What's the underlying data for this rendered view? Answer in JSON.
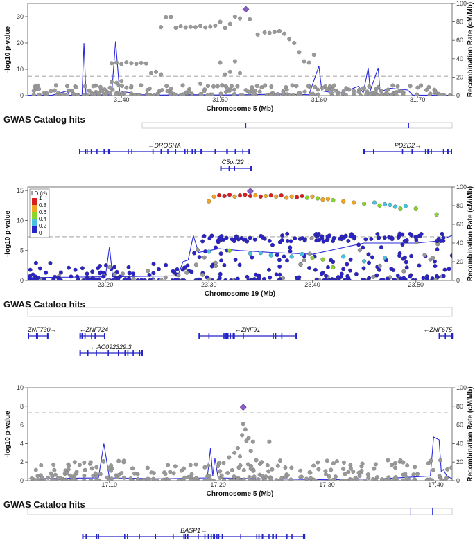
{
  "colors": {
    "point_grey": "#999999",
    "point_stroke": "#777777",
    "recomb_line": "#2a2adc",
    "gene": "#2323c8",
    "lead_snp": "#8a5fc4",
    "threshold": "#c0c0c0",
    "ld": [
      "#2a23c8",
      "#47c2e0",
      "#8bd42c",
      "#f2a521",
      "#d62020"
    ]
  },
  "chart_data": [
    {
      "type": "scatter",
      "xlabel": "Chromosome 5 (Mb)",
      "ylabel": "-log10 p-value",
      "y2label": "Recombination Rate (cM/Mb)",
      "xlim": [
        31.305,
        31.735
      ],
      "ylim": [
        0,
        35
      ],
      "y2lim": [
        0,
        100
      ],
      "xticks": [
        "31.40",
        "31.50",
        "31.60",
        "31.70"
      ],
      "yticks": [
        "0",
        "10",
        "20",
        "30"
      ],
      "y2ticks": [
        "0",
        "20",
        "40",
        "60",
        "80",
        "100"
      ],
      "threshold": 7.3,
      "lead_snp": {
        "x": 31.526,
        "y": 32.8
      },
      "recomb": [
        [
          31.305,
          0.4
        ],
        [
          31.33,
          0.5
        ],
        [
          31.345,
          5
        ],
        [
          31.347,
          0.5
        ],
        [
          31.36,
          0.4
        ],
        [
          31.362,
          57
        ],
        [
          31.364,
          0.5
        ],
        [
          31.39,
          1
        ],
        [
          31.394,
          59
        ],
        [
          31.398,
          5
        ],
        [
          31.42,
          1
        ],
        [
          31.44,
          0.5
        ],
        [
          31.47,
          1
        ],
        [
          31.5,
          0.6
        ],
        [
          31.53,
          1
        ],
        [
          31.56,
          1.5
        ],
        [
          31.59,
          1
        ],
        [
          31.6,
          32
        ],
        [
          31.603,
          5
        ],
        [
          31.62,
          2
        ],
        [
          31.64,
          10
        ],
        [
          31.645,
          3
        ],
        [
          31.65,
          30
        ],
        [
          31.652,
          5
        ],
        [
          31.66,
          30
        ],
        [
          31.662,
          4
        ],
        [
          31.672,
          8
        ],
        [
          31.69,
          6
        ],
        [
          31.695,
          0.5
        ],
        [
          31.735,
          0.3
        ]
      ],
      "points": [
        [
          31.39,
          12.3
        ],
        [
          31.395,
          12.5
        ],
        [
          31.4,
          12.0
        ],
        [
          31.405,
          12.6
        ],
        [
          31.41,
          12.3
        ],
        [
          31.415,
          12.1
        ],
        [
          31.42,
          12.4
        ],
        [
          31.425,
          12.2
        ],
        [
          31.44,
          26.0
        ],
        [
          31.445,
          29.8
        ],
        [
          31.45,
          29.9
        ],
        [
          31.455,
          25.8
        ],
        [
          31.46,
          26.3
        ],
        [
          31.465,
          25.9
        ],
        [
          31.47,
          26.1
        ],
        [
          31.475,
          26.0
        ],
        [
          31.48,
          26.5
        ],
        [
          31.485,
          25.9
        ],
        [
          31.49,
          26.2
        ],
        [
          31.495,
          26.6
        ],
        [
          31.5,
          28.0
        ],
        [
          31.505,
          25.7
        ],
        [
          31.51,
          27.2
        ],
        [
          31.515,
          30.0
        ],
        [
          31.52,
          29.3
        ],
        [
          31.53,
          29.0
        ],
        [
          31.538,
          23.2
        ],
        [
          31.545,
          24.0
        ],
        [
          31.55,
          23.8
        ],
        [
          31.555,
          24.2
        ],
        [
          31.56,
          24.5
        ],
        [
          31.565,
          23.5
        ],
        [
          31.57,
          21.5
        ],
        [
          31.575,
          20.0
        ],
        [
          31.58,
          16.5
        ],
        [
          31.585,
          13.0
        ],
        [
          31.59,
          12.5
        ],
        [
          31.595,
          15.5
        ],
        [
          31.43,
          8.5
        ],
        [
          31.435,
          9.0
        ],
        [
          31.44,
          8.0
        ],
        [
          31.5,
          12.5
        ],
        [
          31.505,
          8.0
        ],
        [
          31.51,
          9.0
        ],
        [
          31.515,
          13.0
        ],
        [
          31.52,
          8.5
        ],
        [
          31.48,
          4.5
        ],
        [
          31.39,
          5.2
        ],
        [
          31.395,
          4.8
        ],
        [
          31.4,
          5.5
        ],
        [
          31.405,
          3.0
        ],
        [
          31.41,
          3.5
        ],
        [
          31.35,
          1.8
        ],
        [
          31.37,
          0.8
        ]
      ]
    },
    {
      "type": "scatter",
      "xlabel": "Chromosome 19 (Mb)",
      "ylabel": "-log10 p-value",
      "y2label": "Recombination Rate (cM/Mb)",
      "xlim": [
        23.125,
        23.535
      ],
      "ylim": [
        0,
        15.6
      ],
      "y2lim": [
        0,
        100
      ],
      "xticks": [
        "23.20",
        "23.30",
        "23.40",
        "23.50"
      ],
      "yticks": [
        "0",
        "5",
        "10",
        "15"
      ],
      "y2ticks": [
        "0",
        "20",
        "40",
        "60",
        "80",
        "100"
      ],
      "threshold": 7.3,
      "lead_snp": {
        "x": 23.34,
        "y": 14.9
      },
      "legend": {
        "title": "LD (r²)",
        "labels": [
          "1",
          "0.8",
          "0.6",
          "0.4",
          "0.2",
          "0"
        ]
      },
      "recomb": [
        [
          23.125,
          3
        ],
        [
          23.2,
          4
        ],
        [
          23.204,
          36
        ],
        [
          23.207,
          4
        ],
        [
          23.27,
          5
        ],
        [
          23.275,
          20
        ],
        [
          23.28,
          22
        ],
        [
          23.285,
          48
        ],
        [
          23.29,
          30
        ],
        [
          23.3,
          32
        ],
        [
          23.31,
          34
        ],
        [
          23.33,
          32
        ],
        [
          23.36,
          30
        ],
        [
          23.4,
          28
        ],
        [
          23.45,
          40
        ],
        [
          23.5,
          40
        ],
        [
          23.52,
          42
        ],
        [
          23.535,
          48
        ]
      ],
      "ld_points": [
        [
          23.3,
          13.2,
          3
        ],
        [
          23.305,
          14.0,
          3
        ],
        [
          23.31,
          14.2,
          4
        ],
        [
          23.315,
          14.1,
          4
        ],
        [
          23.32,
          14.3,
          4
        ],
        [
          23.325,
          14.0,
          3
        ],
        [
          23.33,
          14.2,
          4
        ],
        [
          23.335,
          14.3,
          4
        ],
        [
          23.34,
          14.1,
          4
        ],
        [
          23.345,
          14.2,
          3
        ],
        [
          23.35,
          14.0,
          4
        ],
        [
          23.355,
          14.1,
          3
        ],
        [
          23.36,
          14.2,
          4
        ],
        [
          23.365,
          14.0,
          3
        ],
        [
          23.37,
          14.2,
          4
        ],
        [
          23.375,
          13.8,
          3
        ],
        [
          23.38,
          14.0,
          3
        ],
        [
          23.385,
          13.9,
          4
        ],
        [
          23.39,
          14.1,
          4
        ],
        [
          23.395,
          13.8,
          2
        ],
        [
          23.4,
          14.0,
          3
        ],
        [
          23.405,
          13.7,
          2
        ],
        [
          23.41,
          13.5,
          3
        ],
        [
          23.415,
          13.6,
          3
        ],
        [
          23.42,
          13.4,
          2
        ],
        [
          23.43,
          13.2,
          3
        ],
        [
          23.44,
          13.0,
          3
        ],
        [
          23.45,
          12.8,
          2
        ],
        [
          23.46,
          13.0,
          1
        ],
        [
          23.465,
          12.5,
          2
        ],
        [
          23.47,
          12.7,
          1
        ],
        [
          23.475,
          12.6,
          1
        ],
        [
          23.48,
          12.3,
          1
        ],
        [
          23.485,
          12.0,
          2
        ],
        [
          23.49,
          12.4,
          1
        ],
        [
          23.5,
          12.0,
          2
        ],
        [
          23.52,
          11.0,
          2
        ],
        [
          23.34,
          4.5,
          1
        ],
        [
          23.36,
          4.2,
          1
        ],
        [
          23.38,
          4.0,
          1
        ],
        [
          23.4,
          3.8,
          2
        ],
        [
          23.41,
          3.5,
          2
        ],
        [
          23.43,
          4.0,
          1
        ],
        [
          23.45,
          3.2,
          1
        ],
        [
          23.47,
          3.8,
          1
        ],
        [
          23.32,
          5.0,
          2
        ],
        [
          23.3,
          4.8,
          1
        ],
        [
          23.42,
          2.2,
          2
        ],
        [
          23.35,
          4.6,
          1
        ],
        [
          23.39,
          4.4,
          1
        ]
      ]
    },
    {
      "type": "scatter",
      "xlabel": "Chromosome 5 (Mb)",
      "ylabel": "-log10 p-value",
      "y2label": "Recombination Rate (cM/Mb)",
      "xlim": [
        17.025,
        17.415
      ],
      "ylim": [
        0,
        10
      ],
      "y2lim": [
        0,
        100
      ],
      "xticks": [
        "17.10",
        "17.20",
        "17.30",
        "17.40"
      ],
      "yticks": [
        "0",
        "2",
        "4",
        "6",
        "8",
        "10"
      ],
      "y2ticks": [
        "0",
        "20",
        "40",
        "60",
        "80",
        "100"
      ],
      "threshold": 7.3,
      "lead_snp": {
        "x": 17.223,
        "y": 7.9
      },
      "recomb": [
        [
          17.025,
          2
        ],
        [
          17.09,
          3
        ],
        [
          17.095,
          40
        ],
        [
          17.1,
          3
        ],
        [
          17.15,
          2
        ],
        [
          17.19,
          3
        ],
        [
          17.193,
          35
        ],
        [
          17.195,
          5
        ],
        [
          17.197,
          24
        ],
        [
          17.2,
          3
        ],
        [
          17.24,
          2
        ],
        [
          17.3,
          1
        ],
        [
          17.35,
          2
        ],
        [
          17.395,
          5
        ],
        [
          17.398,
          47
        ],
        [
          17.403,
          44
        ],
        [
          17.405,
          10
        ],
        [
          17.407,
          12
        ],
        [
          17.41,
          5
        ],
        [
          17.415,
          2
        ]
      ],
      "points": [
        [
          17.223,
          6.1
        ],
        [
          17.225,
          5.5
        ],
        [
          17.222,
          4.9
        ],
        [
          17.228,
          4.6
        ],
        [
          17.226,
          4.3
        ],
        [
          17.232,
          4.2
        ],
        [
          17.247,
          4.2
        ],
        [
          17.218,
          3.5
        ],
        [
          17.215,
          3.0
        ],
        [
          17.23,
          3.2
        ],
        [
          17.21,
          2.5
        ],
        [
          17.24,
          2.0
        ],
        [
          17.22,
          2.6
        ],
        [
          17.205,
          1.9
        ],
        [
          17.235,
          2.2
        ]
      ]
    }
  ],
  "panels": [
    {
      "gwas_title": "GWAS Catalog hits",
      "genes": [
        {
          "label": "←DROSHA",
          "start": 31.357,
          "end": 31.53,
          "row": 0
        },
        {
          "label": "C5orf22→",
          "start": 31.5,
          "end": 31.532,
          "row": 1
        },
        {
          "label": "PDZD2→",
          "start": 31.645,
          "end": 31.735,
          "row": 0
        }
      ],
      "gwas_ticks": [
        31.526,
        31.691
      ]
    },
    {
      "gwas_title": "GWAS Catalog hits",
      "genes": [
        {
          "label": "ZNF730→",
          "start": 23.125,
          "end": 23.145,
          "row": 0
        },
        {
          "label": "←ZNF724",
          "start": 23.175,
          "end": 23.2,
          "row": 0
        },
        {
          "label": "←AC092329.3",
          "start": 23.175,
          "end": 23.236,
          "row": 1
        },
        {
          "label": "←ZNF91",
          "start": 23.29,
          "end": 23.385,
          "row": 0
        },
        {
          "label": "←ZNF675",
          "start": 23.522,
          "end": 23.535,
          "row": 0
        }
      ],
      "gwas_ticks": []
    },
    {
      "gwas_title": "GWAS Catalog hits",
      "genes": [
        {
          "label": "BASP1→",
          "start": 17.075,
          "end": 17.28,
          "row": 0
        }
      ],
      "gwas_ticks": [
        17.377,
        17.397
      ]
    }
  ]
}
